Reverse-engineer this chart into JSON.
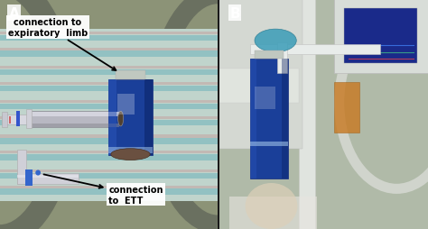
{
  "figsize": [
    4.74,
    2.55
  ],
  "dpi": 100,
  "background_color": "#1a1a1a",
  "panel_A": {
    "label": "A",
    "label_color": "white",
    "label_fontsize": 11,
    "label_fontweight": "bold",
    "annotation1_text": "connection to\nexpiratory  limb",
    "annotation1_fontsize": 7,
    "annotation1_fontweight": "bold",
    "annotation1_color": "black",
    "annotation2_text": "connection\nto  ETT",
    "annotation2_fontsize": 7,
    "annotation2_fontweight": "bold",
    "annotation2_color": "black"
  },
  "panel_B": {
    "label": "B",
    "label_color": "white",
    "label_fontsize": 11,
    "label_fontweight": "bold"
  },
  "colors": {
    "bg_incubator": "#8B9478",
    "cloth_light": "#C8D8D0",
    "cloth_blue_stripe": "#5AACB8",
    "cloth_pink_stripe": "#D4A0A0",
    "metal_tube": "#B8B8C0",
    "metal_tube_highlight": "#E0E0E8",
    "metal_tube_shadow": "#7878808",
    "blue_tube": "#1A3F99",
    "blue_tube_highlight": "#2A55BB",
    "blue_tube_open_end": "#4A3020",
    "connector_body": "#D0D0D8",
    "connector_blue": "#3366CC",
    "clinical_bg": "#B8C0B0",
    "clinical_wall": "#D0D8D4",
    "clinical_equip": "#E0E4E0",
    "monitor_screen": "#2233AA",
    "glove_blue": "#4A9BB0",
    "baby_skin": "#DDD0B8"
  }
}
